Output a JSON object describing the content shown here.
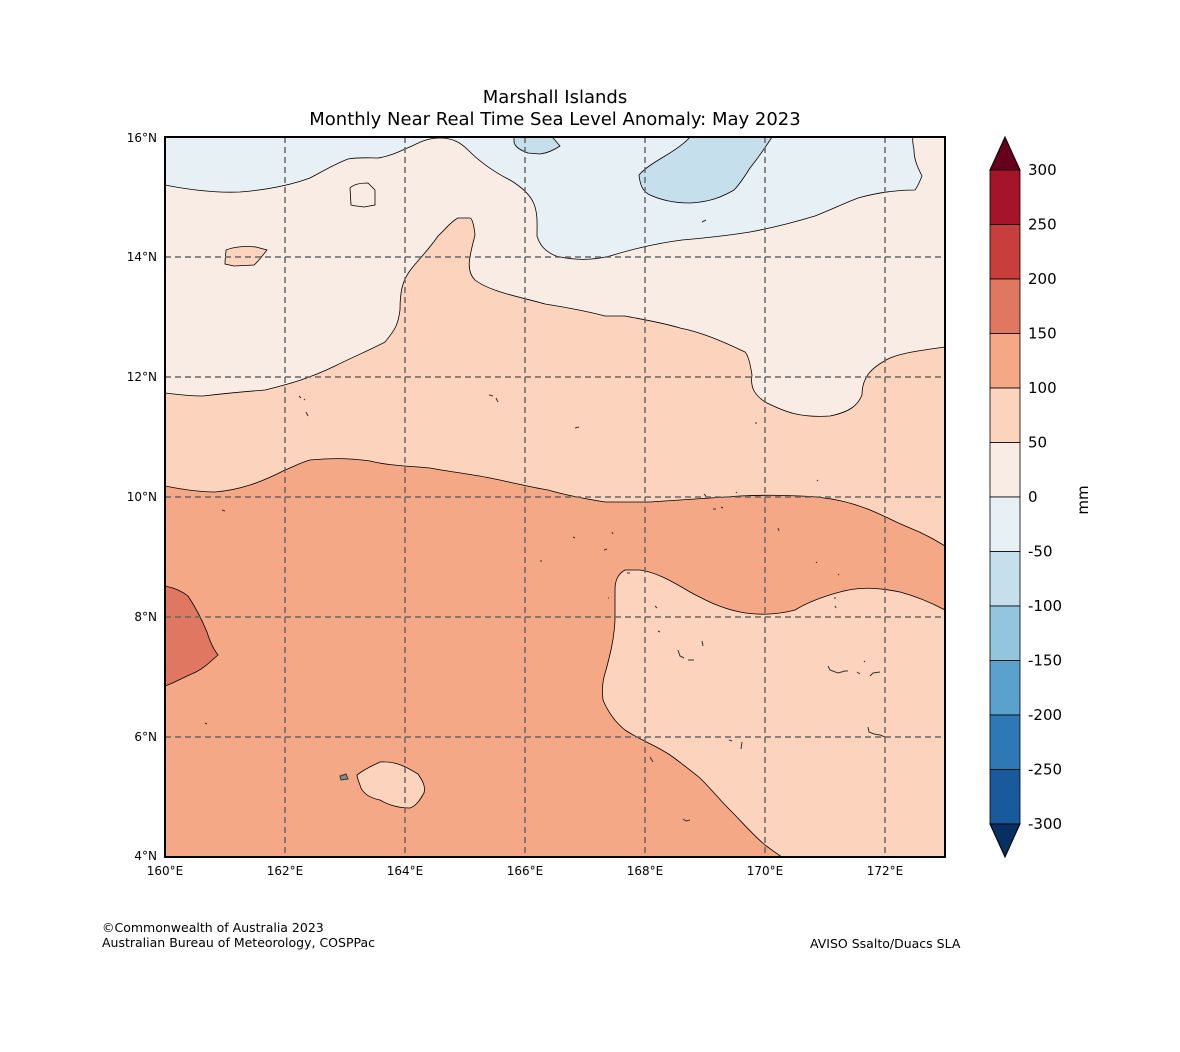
{
  "title": "Marshall Islands",
  "subtitle": "Monthly Near Real Time Sea Level Anomaly: May 2023",
  "map": {
    "lon_ticks": [
      "160°E",
      "162°E",
      "164°E",
      "166°E",
      "168°E",
      "170°E",
      "172°E"
    ],
    "lat_ticks": [
      "16°N",
      "14°N",
      "12°N",
      "10°N",
      "8°N",
      "6°N",
      "4°N"
    ],
    "lon_range": [
      160,
      173
    ],
    "lat_range": [
      4,
      16
    ],
    "grid": "dashed"
  },
  "colorbar": {
    "unit": "mm",
    "levels": [
      "300",
      "250",
      "200",
      "150",
      "100",
      "50",
      "0",
      "-50",
      "-100",
      "-150",
      "-200",
      "-250",
      "-300"
    ],
    "colors": [
      "#a51429",
      "#c83e3c",
      "#e07760",
      "#f5a886",
      "#fcd3bc",
      "#f9ece4",
      "#e7f0f5",
      "#c6dfed",
      "#94c5df",
      "#5aa1cd",
      "#2d78b5",
      "#195a9c"
    ],
    "over_color": "#67001f",
    "under_color": "#053061"
  },
  "credits": {
    "left_line1": "©Commonwealth of Australia 2023",
    "left_line2": "Australian Bureau of Meteorology, COSPPac",
    "right": "AVISO Ssalto/Duacs SLA"
  }
}
